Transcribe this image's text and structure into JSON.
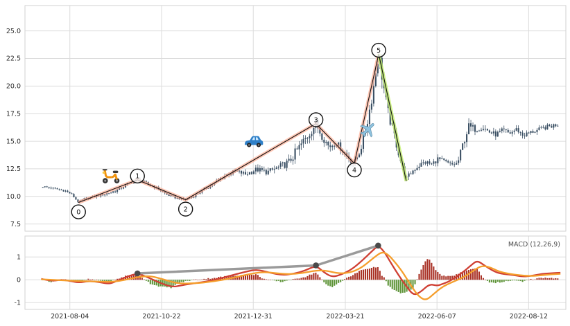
{
  "figure": {
    "background": "#ffffff",
    "grid_color": "#dcdcdc",
    "frame_color": "#d2d2d2",
    "tick_color": "#2b2b2b"
  },
  "x_axis": {
    "ticks": [
      {
        "x": 0.083,
        "label": "2021-08-04"
      },
      {
        "x": 0.2526,
        "label": "2021-10-22"
      },
      {
        "x": 0.4221,
        "label": "2021-12-31"
      },
      {
        "x": 0.5923,
        "label": "2022-03-21"
      },
      {
        "x": 0.7618,
        "label": "2022-06-07"
      },
      {
        "x": 0.9313,
        "label": "2022-08-12"
      }
    ]
  },
  "chart_data": [
    {
      "type": "candlestick",
      "panel": "price",
      "title": "",
      "ylim": [
        6.85,
        27.3
      ],
      "yticks": [
        {
          "v": 7.5,
          "label": "7.5"
        },
        {
          "v": 10.0,
          "label": "10.0"
        },
        {
          "v": 12.5,
          "label": "12.5"
        },
        {
          "v": 15.0,
          "label": "15.0"
        },
        {
          "v": 17.5,
          "label": "17.5"
        },
        {
          "v": 20.0,
          "label": "20.0"
        },
        {
          "v": 22.5,
          "label": "22.5"
        },
        {
          "v": 25.0,
          "label": "25.0"
        }
      ],
      "candle_color": "#3a4f63",
      "n_candles": 250,
      "x_range": [
        0.033,
        0.985
      ],
      "price_path": [
        [
          0.033,
          10.9,
          0.22
        ],
        [
          0.055,
          10.7,
          0.2
        ],
        [
          0.075,
          10.5,
          0.2
        ],
        [
          0.086,
          10.2,
          0.2
        ],
        [
          0.093,
          9.8,
          0.18
        ],
        [
          0.099,
          9.45,
          0.16
        ],
        [
          0.108,
          9.75,
          0.2
        ],
        [
          0.125,
          9.95,
          0.25
        ],
        [
          0.142,
          10.15,
          0.28
        ],
        [
          0.158,
          10.35,
          0.3
        ],
        [
          0.172,
          10.6,
          0.3
        ],
        [
          0.188,
          11.05,
          0.3
        ],
        [
          0.2,
          11.35,
          0.3
        ],
        [
          0.208,
          11.5,
          0.3
        ],
        [
          0.22,
          11.25,
          0.32
        ],
        [
          0.235,
          11.0,
          0.3
        ],
        [
          0.25,
          10.55,
          0.25
        ],
        [
          0.263,
          10.15,
          0.22
        ],
        [
          0.28,
          9.85,
          0.2
        ],
        [
          0.297,
          9.7,
          0.18
        ],
        [
          0.312,
          10.05,
          0.25
        ],
        [
          0.33,
          10.6,
          0.3
        ],
        [
          0.35,
          11.2,
          0.35
        ],
        [
          0.37,
          11.9,
          0.4
        ],
        [
          0.39,
          12.3,
          0.45
        ],
        [
          0.408,
          12.0,
          0.5
        ],
        [
          0.428,
          12.45,
          0.55
        ],
        [
          0.448,
          12.2,
          0.6
        ],
        [
          0.468,
          12.6,
          0.7
        ],
        [
          0.488,
          13.1,
          0.9
        ],
        [
          0.505,
          14.3,
          1.1
        ],
        [
          0.52,
          15.3,
          1.2
        ],
        [
          0.532,
          16.2,
          1.1
        ],
        [
          0.538,
          16.6,
          1.0
        ],
        [
          0.548,
          15.6,
          0.9
        ],
        [
          0.562,
          14.5,
          0.8
        ],
        [
          0.575,
          14.9,
          0.75
        ],
        [
          0.59,
          14.0,
          0.7
        ],
        [
          0.602,
          13.3,
          0.7
        ],
        [
          0.609,
          13.0,
          0.65
        ],
        [
          0.62,
          14.2,
          0.8
        ],
        [
          0.632,
          16.5,
          1.0
        ],
        [
          0.643,
          19.4,
          1.2
        ],
        [
          0.65,
          21.8,
          1.4
        ],
        [
          0.654,
          22.9,
          1.5
        ],
        [
          0.66,
          21.0,
          1.5
        ],
        [
          0.67,
          17.8,
          1.3
        ],
        [
          0.681,
          15.9,
          1.1
        ],
        [
          0.691,
          13.9,
          0.9
        ],
        [
          0.7,
          12.2,
          0.7
        ],
        [
          0.706,
          11.6,
          0.6
        ],
        [
          0.716,
          12.3,
          0.6
        ],
        [
          0.728,
          12.8,
          0.6
        ],
        [
          0.74,
          13.1,
          0.6
        ],
        [
          0.752,
          12.9,
          0.55
        ],
        [
          0.763,
          13.4,
          0.6
        ],
        [
          0.775,
          13.15,
          0.55
        ],
        [
          0.788,
          12.85,
          0.5
        ],
        [
          0.8,
          13.0,
          0.55
        ],
        [
          0.81,
          14.8,
          0.9
        ],
        [
          0.82,
          16.3,
          1.0
        ],
        [
          0.833,
          16.1,
          0.7
        ],
        [
          0.846,
          16.3,
          0.6
        ],
        [
          0.858,
          15.85,
          0.6
        ],
        [
          0.871,
          15.6,
          0.55
        ],
        [
          0.884,
          16.0,
          0.55
        ],
        [
          0.896,
          15.7,
          0.5
        ],
        [
          0.909,
          16.1,
          0.5
        ],
        [
          0.921,
          15.5,
          0.5
        ],
        [
          0.934,
          15.8,
          0.5
        ],
        [
          0.948,
          16.0,
          0.5
        ],
        [
          0.962,
          16.25,
          0.5
        ],
        [
          0.975,
          16.4,
          0.55
        ],
        [
          0.985,
          16.55,
          0.55
        ]
      ],
      "elliott_wave": {
        "line_color": "#ffa184",
        "post_line_color": "#c3ef6d",
        "edge_color": "#111111",
        "points": [
          {
            "label": "0",
            "x": 0.099,
            "price": 9.45,
            "circle_offset": -0.85
          },
          {
            "label": "1",
            "x": 0.208,
            "price": 11.5,
            "circle_offset": 0.35
          },
          {
            "label": "2",
            "x": 0.297,
            "price": 9.7,
            "circle_offset": -0.85
          },
          {
            "label": "3",
            "x": 0.538,
            "price": 16.6,
            "circle_offset": 0.35
          },
          {
            "label": "4",
            "x": 0.609,
            "price": 13.0,
            "circle_offset": -0.6
          },
          {
            "label": "5",
            "x": 0.654,
            "price": 22.9,
            "circle_offset": 0.35
          }
        ],
        "terminal_point": {
          "x": 0.705,
          "price": 11.4
        }
      },
      "icons": [
        {
          "name": "scooter-icon",
          "x": 0.159,
          "price": 12.05
        },
        {
          "name": "car-icon",
          "x": 0.422,
          "price": 14.9
        },
        {
          "name": "airplane-icon",
          "x": 0.635,
          "price": 16.1
        }
      ]
    },
    {
      "type": "macd",
      "panel": "indicator",
      "label": "MACD (12,26,9)",
      "ylim": [
        -1.3,
        1.92
      ],
      "yticks": [
        {
          "v": -1,
          "label": "-1"
        },
        {
          "v": 0,
          "label": "0"
        },
        {
          "v": 1,
          "label": "1"
        }
      ],
      "colors": {
        "macd_line": "#cf3f33",
        "signal_line": "#f59e2c",
        "hist_positive": "#a93226",
        "hist_negative": "#5e9438",
        "divergence": "#8f8f8f",
        "divergence_dot": "#4a4a4a"
      },
      "hist_scale": 1.5,
      "macd_line": [
        [
          0.03,
          0.04
        ],
        [
          0.048,
          -0.06
        ],
        [
          0.066,
          0.0
        ],
        [
          0.084,
          -0.05
        ],
        [
          0.1,
          -0.13
        ],
        [
          0.118,
          -0.05
        ],
        [
          0.138,
          -0.1
        ],
        [
          0.156,
          -0.19
        ],
        [
          0.172,
          -0.03
        ],
        [
          0.19,
          0.15
        ],
        [
          0.208,
          0.28
        ],
        [
          0.226,
          0.12
        ],
        [
          0.248,
          -0.12
        ],
        [
          0.272,
          -0.33
        ],
        [
          0.294,
          -0.22
        ],
        [
          0.318,
          -0.14
        ],
        [
          0.348,
          -0.03
        ],
        [
          0.378,
          0.17
        ],
        [
          0.404,
          0.33
        ],
        [
          0.428,
          0.46
        ],
        [
          0.452,
          0.31
        ],
        [
          0.476,
          0.2
        ],
        [
          0.498,
          0.27
        ],
        [
          0.518,
          0.4
        ],
        [
          0.538,
          0.63
        ],
        [
          0.554,
          0.3
        ],
        [
          0.568,
          0.12
        ],
        [
          0.584,
          0.22
        ],
        [
          0.604,
          0.45
        ],
        [
          0.624,
          0.85
        ],
        [
          0.64,
          1.22
        ],
        [
          0.653,
          1.5
        ],
        [
          0.664,
          1.25
        ],
        [
          0.677,
          0.72
        ],
        [
          0.693,
          0.12
        ],
        [
          0.705,
          -0.28
        ],
        [
          0.718,
          -0.68
        ],
        [
          0.731,
          -0.55
        ],
        [
          0.748,
          -0.18
        ],
        [
          0.762,
          -0.27
        ],
        [
          0.774,
          -0.17
        ],
        [
          0.787,
          -0.04
        ],
        [
          0.808,
          0.3
        ],
        [
          0.824,
          0.62
        ],
        [
          0.836,
          0.85
        ],
        [
          0.85,
          0.62
        ],
        [
          0.866,
          0.38
        ],
        [
          0.88,
          0.26
        ],
        [
          0.901,
          0.22
        ],
        [
          0.92,
          0.13
        ],
        [
          0.938,
          0.18
        ],
        [
          0.956,
          0.26
        ],
        [
          0.975,
          0.29
        ],
        [
          0.99,
          0.31
        ]
      ],
      "signal_line": [
        [
          0.03,
          0.02
        ],
        [
          0.066,
          -0.02
        ],
        [
          0.1,
          -0.06
        ],
        [
          0.138,
          -0.08
        ],
        [
          0.162,
          -0.1
        ],
        [
          0.186,
          0.0
        ],
        [
          0.21,
          0.13
        ],
        [
          0.232,
          0.17
        ],
        [
          0.256,
          0.02
        ],
        [
          0.282,
          -0.17
        ],
        [
          0.312,
          -0.16
        ],
        [
          0.348,
          -0.08
        ],
        [
          0.382,
          0.07
        ],
        [
          0.412,
          0.24
        ],
        [
          0.44,
          0.35
        ],
        [
          0.464,
          0.29
        ],
        [
          0.488,
          0.24
        ],
        [
          0.512,
          0.29
        ],
        [
          0.538,
          0.41
        ],
        [
          0.558,
          0.4
        ],
        [
          0.578,
          0.28
        ],
        [
          0.6,
          0.3
        ],
        [
          0.622,
          0.52
        ],
        [
          0.644,
          0.95
        ],
        [
          0.66,
          1.24
        ],
        [
          0.672,
          1.1
        ],
        [
          0.686,
          0.72
        ],
        [
          0.7,
          0.28
        ],
        [
          0.716,
          -0.35
        ],
        [
          0.73,
          -0.78
        ],
        [
          0.742,
          -0.9
        ],
        [
          0.756,
          -0.62
        ],
        [
          0.772,
          -0.3
        ],
        [
          0.79,
          -0.1
        ],
        [
          0.812,
          0.12
        ],
        [
          0.832,
          0.45
        ],
        [
          0.845,
          0.62
        ],
        [
          0.86,
          0.55
        ],
        [
          0.876,
          0.36
        ],
        [
          0.895,
          0.26
        ],
        [
          0.914,
          0.2
        ],
        [
          0.934,
          0.16
        ],
        [
          0.956,
          0.2
        ],
        [
          0.975,
          0.24
        ],
        [
          0.99,
          0.26
        ]
      ],
      "divergence_points": [
        {
          "x": 0.208,
          "value": 0.28
        },
        {
          "x": 0.538,
          "value": 0.63
        },
        {
          "x": 0.653,
          "value": 1.5
        }
      ]
    }
  ]
}
